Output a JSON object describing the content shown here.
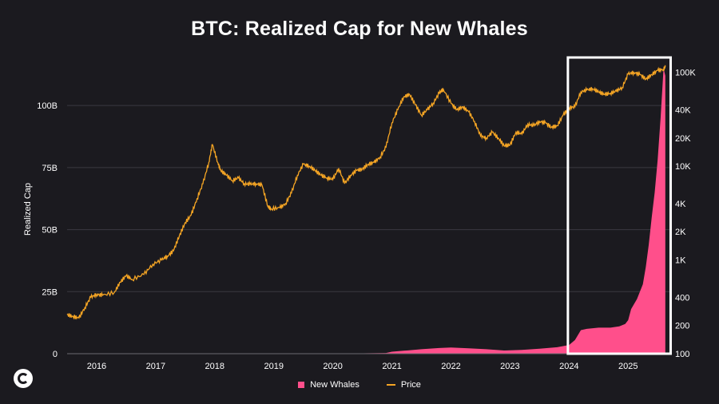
{
  "chart_data": {
    "type": "area",
    "title": "BTC: Realized Cap for New Whales",
    "ylabel": "Realized Cap",
    "xlim": [
      2015.5,
      2025.7
    ],
    "ylim": [
      0,
      120
    ],
    "y_unit": "B",
    "y2lim": [
      100,
      150000
    ],
    "y2_scale": "log",
    "x_ticks": [
      "2016",
      "2017",
      "2018",
      "2019",
      "2020",
      "2021",
      "2022",
      "2023",
      "2024",
      "2025"
    ],
    "y_ticks": [
      "0",
      "25B",
      "50B",
      "75B",
      "100B"
    ],
    "y_tick_values": [
      0,
      25,
      50,
      75,
      100
    ],
    "y2_ticks": [
      "100",
      "200",
      "400",
      "1K",
      "2K",
      "4K",
      "10K",
      "20K",
      "40K",
      "100K"
    ],
    "y2_tick_values": [
      100,
      200,
      400,
      1000,
      2000,
      4000,
      10000,
      20000,
      40000,
      100000
    ],
    "grid": "horizontal",
    "legend_position": "bottom-center",
    "highlight_box": {
      "x_start": 2023.98,
      "x_end": 2025.72,
      "color": "#ffffff"
    },
    "series": [
      {
        "name": "New Whales",
        "kind": "area",
        "axis": "left",
        "color": "#ff4f8b",
        "x": [
          2015.5,
          2020.0,
          2020.9,
          2021.0,
          2021.2,
          2021.5,
          2021.8,
          2022.0,
          2022.3,
          2022.6,
          2022.9,
          2023.2,
          2023.5,
          2023.8,
          2024.0,
          2024.1,
          2024.2,
          2024.3,
          2024.5,
          2024.7,
          2024.85,
          2024.95,
          2025.0,
          2025.05,
          2025.15,
          2025.25,
          2025.3,
          2025.35,
          2025.4,
          2025.45,
          2025.5,
          2025.55,
          2025.6,
          2025.63
        ],
        "values": [
          0,
          0,
          0.3,
          0.8,
          1.2,
          1.8,
          2.3,
          2.5,
          2.2,
          1.8,
          1.3,
          1.5,
          2.0,
          2.6,
          3.5,
          5.5,
          9.5,
          10.0,
          10.5,
          10.5,
          11.0,
          12.0,
          13.5,
          18.0,
          22.0,
          28.0,
          35.0,
          44.0,
          55.0,
          65.0,
          78.0,
          95.0,
          115.0,
          112.0
        ]
      },
      {
        "name": "Price",
        "kind": "line",
        "axis": "right",
        "color": "#f5a524",
        "x": [
          2015.5,
          2015.6,
          2015.7,
          2015.8,
          2015.9,
          2016.0,
          2016.1,
          2016.3,
          2016.4,
          2016.5,
          2016.6,
          2016.8,
          2016.95,
          2017.1,
          2017.2,
          2017.3,
          2017.4,
          2017.5,
          2017.6,
          2017.7,
          2017.8,
          2017.9,
          2017.96,
          2018.05,
          2018.1,
          2018.2,
          2018.3,
          2018.4,
          2018.5,
          2018.6,
          2018.7,
          2018.8,
          2018.9,
          2018.96,
          2019.1,
          2019.2,
          2019.3,
          2019.4,
          2019.5,
          2019.6,
          2019.7,
          2019.8,
          2019.9,
          2020.0,
          2020.1,
          2020.2,
          2020.3,
          2020.4,
          2020.5,
          2020.6,
          2020.7,
          2020.8,
          2020.9,
          2021.0,
          2021.1,
          2021.2,
          2021.3,
          2021.4,
          2021.5,
          2021.6,
          2021.7,
          2021.8,
          2021.87,
          2022.0,
          2022.1,
          2022.2,
          2022.3,
          2022.4,
          2022.5,
          2022.6,
          2022.7,
          2022.8,
          2022.9,
          2023.0,
          2023.1,
          2023.2,
          2023.3,
          2023.4,
          2023.5,
          2023.6,
          2023.7,
          2023.8,
          2023.9,
          2024.0,
          2024.1,
          2024.2,
          2024.3,
          2024.4,
          2024.5,
          2024.6,
          2024.7,
          2024.8,
          2024.9,
          2025.0,
          2025.1,
          2025.2,
          2025.3,
          2025.4,
          2025.5,
          2025.6,
          2025.63
        ],
        "values": [
          260,
          250,
          240,
          310,
          400,
          430,
          420,
          450,
          580,
          680,
          620,
          700,
          900,
          1000,
          1100,
          1250,
          1800,
          2500,
          3000,
          4500,
          6500,
          11000,
          17000,
          11000,
          9000,
          8000,
          7000,
          7500,
          6500,
          6400,
          6500,
          6300,
          3700,
          3500,
          3600,
          4000,
          5200,
          8000,
          10500,
          10000,
          9000,
          8000,
          7500,
          7200,
          9500,
          6500,
          8000,
          9000,
          9300,
          10500,
          11000,
          12500,
          16000,
          29000,
          40000,
          55000,
          58000,
          45000,
          35000,
          40000,
          47000,
          60000,
          66000,
          47000,
          40000,
          43000,
          38000,
          30000,
          21000,
          20000,
          23000,
          20000,
          16500,
          16800,
          23000,
          22000,
          28000,
          27000,
          30000,
          29000,
          26000,
          27000,
          35000,
          42000,
          43000,
          62000,
          65000,
          67000,
          62000,
          58000,
          60000,
          63000,
          69000,
          96000,
          100000,
          95000,
          85000,
          95000,
          105000,
          108000,
          115000
        ]
      }
    ]
  }
}
